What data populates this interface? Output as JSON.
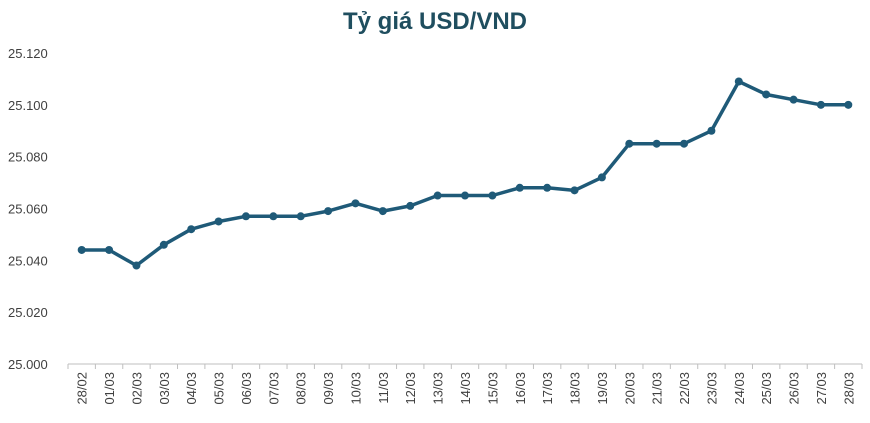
{
  "chart_data": {
    "type": "line",
    "title": "Tỷ giá USD/VND",
    "categories": [
      "28/02",
      "01/03",
      "02/03",
      "03/03",
      "04/03",
      "05/03",
      "06/03",
      "07/03",
      "08/03",
      "09/03",
      "10/03",
      "11/03",
      "12/03",
      "13/03",
      "14/03",
      "15/03",
      "16/03",
      "17/03",
      "18/03",
      "19/03",
      "20/03",
      "21/03",
      "22/03",
      "23/03",
      "24/03",
      "25/03",
      "26/03",
      "27/03",
      "28/03"
    ],
    "values": [
      25044,
      25044,
      25038,
      25046,
      25052,
      25055,
      25057,
      25057,
      25057,
      25059,
      25062,
      25059,
      25061,
      25065,
      25065,
      25065,
      25068,
      25068,
      25067,
      25072,
      25085,
      25085,
      25085,
      25090,
      25109,
      25104,
      25102,
      25100,
      25100
    ],
    "ylim": [
      25000,
      25120
    ],
    "yticks": [
      25000,
      25020,
      25040,
      25060,
      25080,
      25100,
      25120
    ],
    "ytick_labels": [
      "25.000",
      "25.020",
      "25.040",
      "25.060",
      "25.080",
      "25.100",
      "25.120"
    ],
    "grid": false,
    "legend": "none",
    "line_color": "#1f5a78",
    "axis_color": "#bfbfbf",
    "title_color": "#1f4e5f",
    "label_color": "#404040"
  }
}
